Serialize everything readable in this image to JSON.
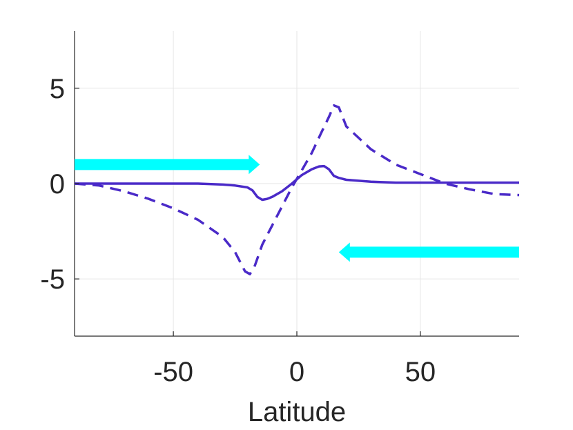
{
  "chart_data": {
    "type": "line",
    "title": "",
    "xlabel": "Latitude",
    "ylabel": "",
    "xlim": [
      -90,
      90
    ],
    "ylim": [
      -8,
      8
    ],
    "xticks": [
      -50,
      0,
      50
    ],
    "xtick_labels": [
      "-50",
      "0",
      "50"
    ],
    "yticks": [
      -5,
      0,
      5
    ],
    "ytick_labels": [
      "-5",
      "0",
      "5"
    ],
    "grid": true,
    "series": [
      {
        "style": "solid",
        "color": "#4a2ac8",
        "x": [
          -90,
          -60,
          -40,
          -30,
          -25,
          -20,
          -18,
          -16,
          -14,
          -12,
          -10,
          -6,
          -2,
          2,
          6,
          9,
          11,
          13,
          15,
          17,
          20,
          30,
          40,
          60,
          90
        ],
        "y": [
          0,
          0,
          0,
          -0.05,
          -0.1,
          -0.2,
          -0.35,
          -0.7,
          -0.85,
          -0.8,
          -0.7,
          -0.4,
          0,
          0.45,
          0.75,
          0.9,
          0.92,
          0.75,
          0.4,
          0.3,
          0.2,
          0.1,
          0.05,
          0.05,
          0.05
        ]
      },
      {
        "style": "dashed",
        "color": "#4a2ac8",
        "x": [
          -90,
          -80,
          -70,
          -60,
          -50,
          -40,
          -30,
          -25,
          -21,
          -19,
          -17,
          -14,
          -10,
          -6,
          -2,
          2,
          6,
          10,
          13,
          15,
          17,
          20,
          30,
          40,
          50,
          60,
          70,
          80,
          90
        ],
        "y": [
          0,
          -0.1,
          -0.4,
          -0.8,
          -1.3,
          -1.9,
          -2.8,
          -3.6,
          -4.6,
          -4.75,
          -4.3,
          -3.2,
          -2.2,
          -1.2,
          -0.2,
          0.7,
          1.6,
          2.7,
          3.5,
          4.1,
          4.0,
          3.0,
          1.8,
          1.0,
          0.5,
          0.0,
          -0.3,
          -0.55,
          -0.6
        ]
      }
    ],
    "arrows": [
      {
        "direction": "right",
        "color": "#00ffff",
        "x_from": -90,
        "x_to": -15,
        "y": 1.0
      },
      {
        "direction": "left",
        "color": "#00ffff",
        "x_from": 90,
        "x_to": 17,
        "y": -3.6
      }
    ]
  }
}
